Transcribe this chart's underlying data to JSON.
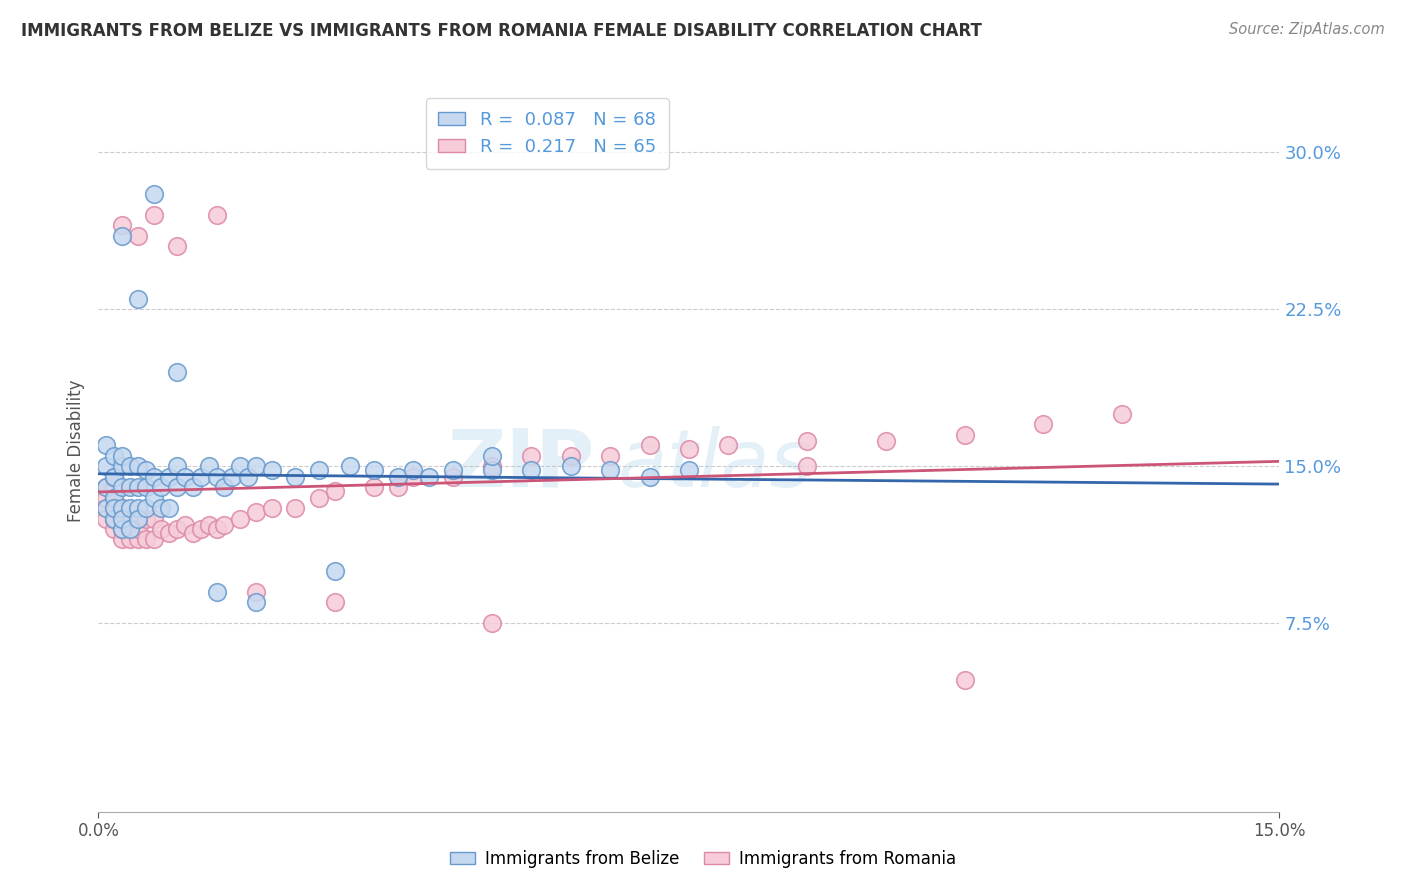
{
  "title": "IMMIGRANTS FROM BELIZE VS IMMIGRANTS FROM ROMANIA FEMALE DISABILITY CORRELATION CHART",
  "source": "Source: ZipAtlas.com",
  "ylabel": "Female Disability",
  "watermark": "ZIPAtlas",
  "legend_belize": "Immigrants from Belize",
  "legend_romania": "Immigrants from Romania",
  "r_belize": 0.087,
  "n_belize": 68,
  "r_romania": 0.217,
  "n_romania": 65,
  "color_belize_face": "#c5d8f0",
  "color_belize_edge": "#6699cc",
  "color_romania_face": "#f5ccd8",
  "color_romania_edge": "#dd88aa",
  "color_axis_labels": "#5599dd",
  "xlim": [
    0.0,
    0.15
  ],
  "ylim": [
    -0.015,
    0.33
  ],
  "yticks": [
    0.075,
    0.15,
    0.225,
    0.3
  ],
  "ytick_labels": [
    "7.5%",
    "15.0%",
    "22.5%",
    "30.0%"
  ],
  "background_color": "#ffffff",
  "grid_color": "#cccccc",
  "trend_belize_color": "#3366aa",
  "trend_romania_color": "#cc5577",
  "belize_x": [
    0.001,
    0.001,
    0.001,
    0.001,
    0.002,
    0.002,
    0.002,
    0.002,
    0.002,
    0.002,
    0.003,
    0.003,
    0.003,
    0.003,
    0.003,
    0.003,
    0.004,
    0.004,
    0.004,
    0.004,
    0.005,
    0.005,
    0.005,
    0.005,
    0.006,
    0.006,
    0.006,
    0.007,
    0.007,
    0.008,
    0.008,
    0.009,
    0.009,
    0.01,
    0.01,
    0.011,
    0.012,
    0.013,
    0.014,
    0.015,
    0.016,
    0.017,
    0.018,
    0.019,
    0.02,
    0.022,
    0.025,
    0.028,
    0.032,
    0.035,
    0.038,
    0.04,
    0.042,
    0.045,
    0.05,
    0.055,
    0.06,
    0.065,
    0.07,
    0.075,
    0.003,
    0.005,
    0.007,
    0.01,
    0.015,
    0.02,
    0.03,
    0.05
  ],
  "belize_y": [
    0.13,
    0.14,
    0.15,
    0.16,
    0.125,
    0.135,
    0.145,
    0.155,
    0.13,
    0.145,
    0.12,
    0.13,
    0.14,
    0.15,
    0.155,
    0.125,
    0.13,
    0.14,
    0.15,
    0.12,
    0.13,
    0.14,
    0.15,
    0.125,
    0.13,
    0.14,
    0.148,
    0.135,
    0.145,
    0.13,
    0.14,
    0.13,
    0.145,
    0.14,
    0.15,
    0.145,
    0.14,
    0.145,
    0.15,
    0.145,
    0.14,
    0.145,
    0.15,
    0.145,
    0.15,
    0.148,
    0.145,
    0.148,
    0.15,
    0.148,
    0.145,
    0.148,
    0.145,
    0.148,
    0.148,
    0.148,
    0.15,
    0.148,
    0.145,
    0.148,
    0.26,
    0.23,
    0.28,
    0.195,
    0.09,
    0.085,
    0.1,
    0.155
  ],
  "romania_x": [
    0.001,
    0.001,
    0.001,
    0.001,
    0.002,
    0.002,
    0.002,
    0.002,
    0.002,
    0.002,
    0.003,
    0.003,
    0.003,
    0.003,
    0.004,
    0.004,
    0.004,
    0.005,
    0.005,
    0.005,
    0.006,
    0.006,
    0.007,
    0.007,
    0.008,
    0.009,
    0.01,
    0.011,
    0.012,
    0.013,
    0.014,
    0.015,
    0.016,
    0.018,
    0.02,
    0.022,
    0.025,
    0.028,
    0.03,
    0.035,
    0.038,
    0.04,
    0.045,
    0.05,
    0.055,
    0.06,
    0.065,
    0.07,
    0.075,
    0.08,
    0.09,
    0.1,
    0.11,
    0.12,
    0.13,
    0.003,
    0.005,
    0.007,
    0.01,
    0.015,
    0.02,
    0.03,
    0.05,
    0.09,
    0.11
  ],
  "romania_y": [
    0.13,
    0.14,
    0.125,
    0.135,
    0.12,
    0.13,
    0.14,
    0.125,
    0.135,
    0.125,
    0.115,
    0.125,
    0.13,
    0.12,
    0.115,
    0.125,
    0.12,
    0.115,
    0.125,
    0.12,
    0.115,
    0.125,
    0.115,
    0.125,
    0.12,
    0.118,
    0.12,
    0.122,
    0.118,
    0.12,
    0.122,
    0.12,
    0.122,
    0.125,
    0.128,
    0.13,
    0.13,
    0.135,
    0.138,
    0.14,
    0.14,
    0.145,
    0.145,
    0.15,
    0.155,
    0.155,
    0.155,
    0.16,
    0.158,
    0.16,
    0.162,
    0.162,
    0.165,
    0.17,
    0.175,
    0.265,
    0.26,
    0.27,
    0.255,
    0.27,
    0.09,
    0.085,
    0.075,
    0.15,
    0.048
  ]
}
